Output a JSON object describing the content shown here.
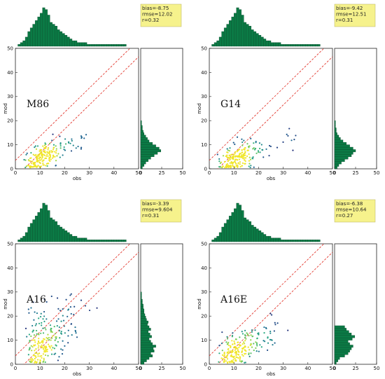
{
  "colors": {
    "hist_fill": "#0b7a45",
    "hist_stroke": "#0a4f2e",
    "stats_bg": "#f6f28c",
    "one_to_one": "#e0281e",
    "frame": "#222222"
  },
  "chart_data": [
    {
      "type": "scatter",
      "model": "M86",
      "xlabel": "obs",
      "ylabel": "mod",
      "xlim": [
        0,
        50
      ],
      "ylim": [
        0,
        50
      ],
      "x_ticks": [
        "0",
        "10",
        "20",
        "30",
        "40",
        "50"
      ],
      "y_ticks": [
        "0",
        "10",
        "20",
        "30",
        "40",
        "50"
      ],
      "right_hist_ticks": [
        "0",
        "25",
        "50"
      ],
      "stats": [
        "bias=-8.75",
        "rmse=12.02",
        "r=0.32"
      ],
      "obs_hist": {
        "bin_width": 1,
        "start": 0,
        "counts": [
          0,
          1,
          2,
          3,
          5,
          8,
          10,
          12,
          14,
          16,
          18,
          21,
          20,
          17,
          13,
          12,
          11,
          9,
          8,
          7,
          6,
          5,
          4,
          3,
          3,
          2,
          2,
          2,
          2,
          1,
          1,
          1,
          1,
          1,
          1,
          1,
          1,
          1,
          1,
          1,
          1,
          1,
          1,
          1,
          1,
          0,
          0,
          0,
          0,
          0
        ]
      },
      "mod_hist": {
        "bin_width": 1,
        "start": 0,
        "counts": [
          2,
          4,
          6,
          9,
          12,
          16,
          20,
          24,
          22,
          18,
          14,
          10,
          8,
          6,
          4,
          3,
          2,
          2,
          1,
          1
        ]
      },
      "reference_lines": [
        "1:1",
        "offset"
      ]
    },
    {
      "type": "scatter",
      "model": "G14",
      "xlabel": "obs",
      "ylabel": "mod",
      "xlim": [
        0,
        50
      ],
      "ylim": [
        0,
        50
      ],
      "x_ticks": [
        "0",
        "10",
        "20",
        "30",
        "40",
        "50"
      ],
      "y_ticks": [
        "0",
        "10",
        "20",
        "30",
        "40",
        "50"
      ],
      "right_hist_ticks": [
        "0",
        "25",
        "50"
      ],
      "stats": [
        "bias=-9.42",
        "rmse=12.51",
        "r=0.31"
      ],
      "obs_hist": {
        "bin_width": 1,
        "start": 0,
        "counts": [
          0,
          1,
          2,
          3,
          5,
          8,
          10,
          12,
          14,
          16,
          18,
          21,
          20,
          17,
          13,
          12,
          11,
          9,
          8,
          7,
          6,
          5,
          4,
          3,
          3,
          2,
          2,
          2,
          2,
          1,
          1,
          1,
          1,
          1,
          1,
          1,
          1,
          1,
          1,
          1,
          1,
          1,
          1,
          1,
          1,
          0,
          0,
          0,
          0,
          0
        ]
      },
      "mod_hist": {
        "bin_width": 1,
        "start": 0,
        "counts": [
          3,
          5,
          8,
          12,
          16,
          20,
          22,
          25,
          22,
          18,
          14,
          10,
          7,
          5,
          3,
          2,
          2,
          1,
          1,
          1
        ]
      },
      "reference_lines": [
        "1:1",
        "offset"
      ]
    },
    {
      "type": "scatter",
      "model": "A16",
      "xlabel": "obs",
      "ylabel": "mod",
      "xlim": [
        0,
        50
      ],
      "ylim": [
        0,
        50
      ],
      "x_ticks": [
        "0",
        "10",
        "20",
        "30",
        "40",
        "50"
      ],
      "y_ticks": [
        "0",
        "10",
        "20",
        "30",
        "40",
        "50"
      ],
      "right_hist_ticks": [
        "0",
        "25",
        "50"
      ],
      "stats": [
        "bias=-3.39",
        "rmse=9.604",
        "r=0.31"
      ],
      "obs_hist": {
        "bin_width": 1,
        "start": 0,
        "counts": [
          0,
          1,
          2,
          3,
          5,
          8,
          10,
          12,
          14,
          16,
          18,
          21,
          20,
          17,
          13,
          12,
          11,
          9,
          8,
          7,
          6,
          5,
          4,
          3,
          3,
          2,
          2,
          2,
          2,
          1,
          1,
          1,
          1,
          1,
          1,
          1,
          1,
          1,
          1,
          1,
          1,
          1,
          1,
          1,
          1,
          0,
          0,
          0,
          0,
          0
        ]
      },
      "mod_hist": {
        "bin_width": 1,
        "start": 0,
        "counts": [
          4,
          7,
          10,
          14,
          12,
          16,
          15,
          18,
          14,
          12,
          10,
          13,
          11,
          9,
          12,
          10,
          8,
          9,
          7,
          6,
          5,
          4,
          4,
          3,
          3,
          2,
          2,
          1,
          1,
          1
        ]
      },
      "reference_lines": [
        "1:1",
        "offset"
      ]
    },
    {
      "type": "scatter",
      "model": "A16E",
      "xlabel": "obs",
      "ylabel": "mod",
      "xlim": [
        0,
        50
      ],
      "ylim": [
        0,
        50
      ],
      "x_ticks": [
        "0",
        "10",
        "20",
        "30",
        "40",
        "50"
      ],
      "y_ticks": [
        "0",
        "10",
        "20",
        "30",
        "40",
        "50"
      ],
      "right_hist_ticks": [
        "0",
        "25",
        "50"
      ],
      "stats": [
        "bias=-6.38",
        "rmse=10.64",
        "r=0.27"
      ],
      "obs_hist": {
        "bin_width": 1,
        "start": 0,
        "counts": [
          0,
          1,
          2,
          3,
          5,
          8,
          10,
          12,
          14,
          16,
          18,
          21,
          20,
          17,
          13,
          12,
          11,
          9,
          8,
          7,
          6,
          5,
          4,
          3,
          3,
          2,
          2,
          2,
          2,
          1,
          1,
          1,
          1,
          1,
          1,
          1,
          1,
          1,
          1,
          1,
          1,
          1,
          1,
          1,
          1,
          0,
          0,
          0,
          0,
          0
        ]
      },
      "mod_hist": {
        "bin_width": 1,
        "start": 0,
        "counts": [
          2,
          4,
          6,
          12,
          16,
          18,
          20,
          22,
          18,
          16,
          21,
          24,
          20,
          17,
          14,
          12
        ]
      },
      "reference_lines": [
        "1:1",
        "offset"
      ]
    }
  ]
}
